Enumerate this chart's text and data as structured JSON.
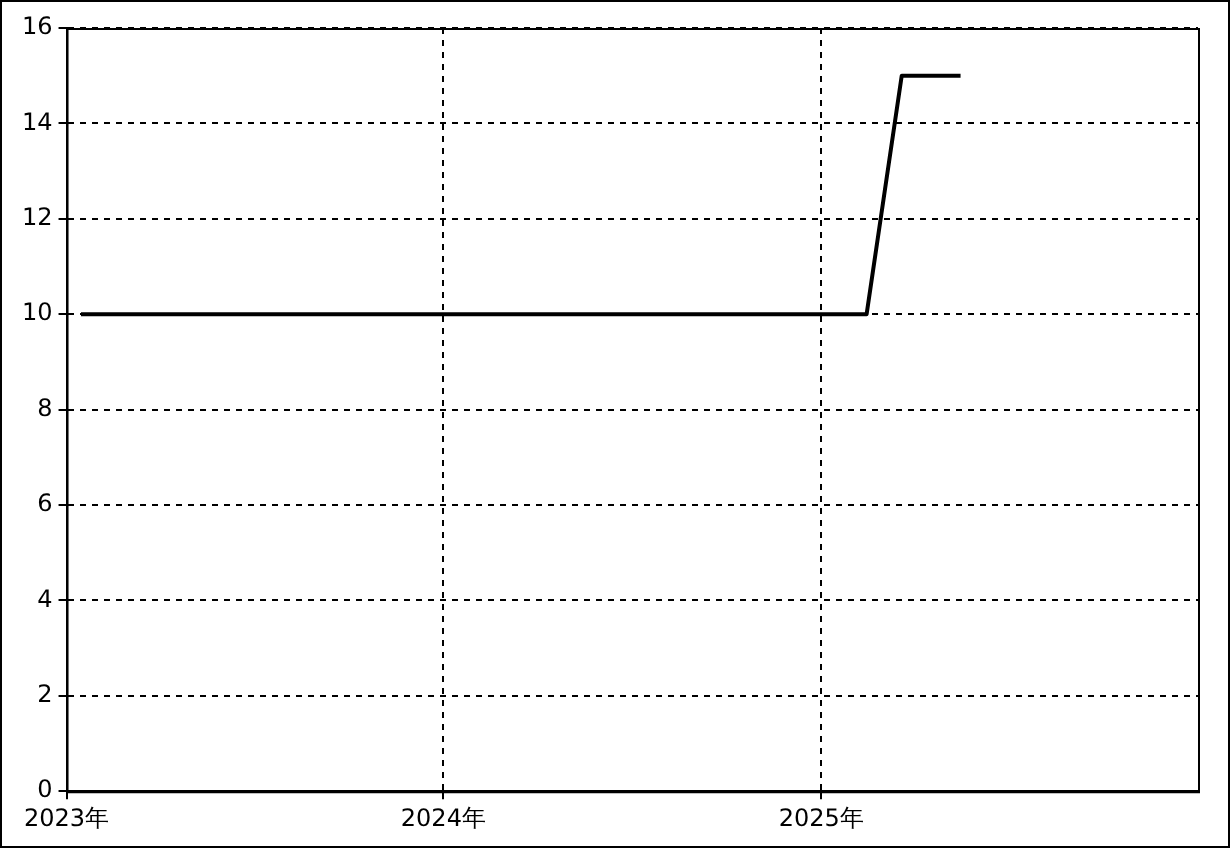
{
  "chart_data": {
    "type": "line",
    "x": [
      "2023-01-15",
      "2025-02-14",
      "2025-03-20",
      "2025-05-16"
    ],
    "series": [
      {
        "color": "#000000",
        "values": [
          10,
          10,
          15,
          15
        ]
      }
    ],
    "xlim": [
      "2023-01-01",
      "2026-01-01"
    ],
    "xticks": [
      {
        "value": "2023-01-01",
        "label": "2023年"
      },
      {
        "value": "2024-01-01",
        "label": "2024年"
      },
      {
        "value": "2025-01-01",
        "label": "2025年"
      }
    ],
    "ylim": [
      0,
      16
    ],
    "yticks": [
      0,
      2,
      4,
      6,
      8,
      10,
      12,
      14,
      16
    ],
    "grid": true,
    "legend": false,
    "marker": "none",
    "line_style": "solid"
  }
}
